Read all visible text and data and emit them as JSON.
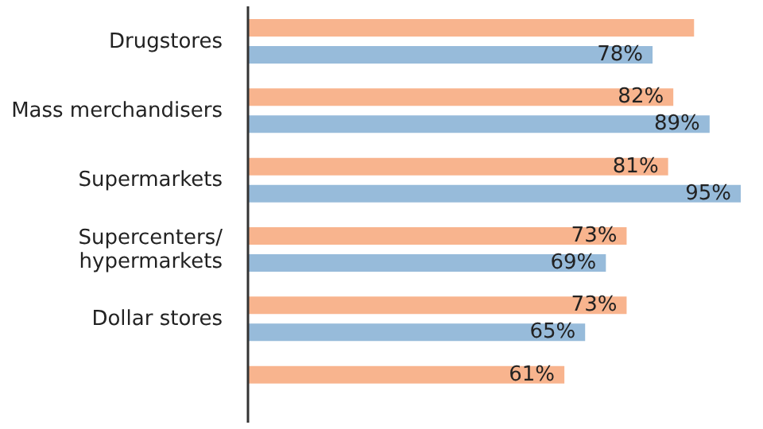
{
  "chart_data": {
    "type": "bar",
    "orientation": "horizontal",
    "categories": [
      "Drugstores",
      "Mass merchandisers",
      "Supermarkets",
      "Supercenters/ hypermarkets",
      "Dollar stores",
      null
    ],
    "series": [
      {
        "color": "#f8b48e",
        "values": [
          86,
          82,
          81,
          73,
          73,
          61
        ],
        "value_labels": [
          null,
          "82%",
          "81%",
          "73%",
          "73%",
          "61%"
        ]
      },
      {
        "color": "#97bbda",
        "values": [
          78,
          89,
          95,
          69,
          65,
          null
        ],
        "value_labels": [
          "78%",
          "89%",
          "95%",
          "69%",
          "65%",
          null
        ]
      }
    ],
    "tick_labels": "y"
  }
}
